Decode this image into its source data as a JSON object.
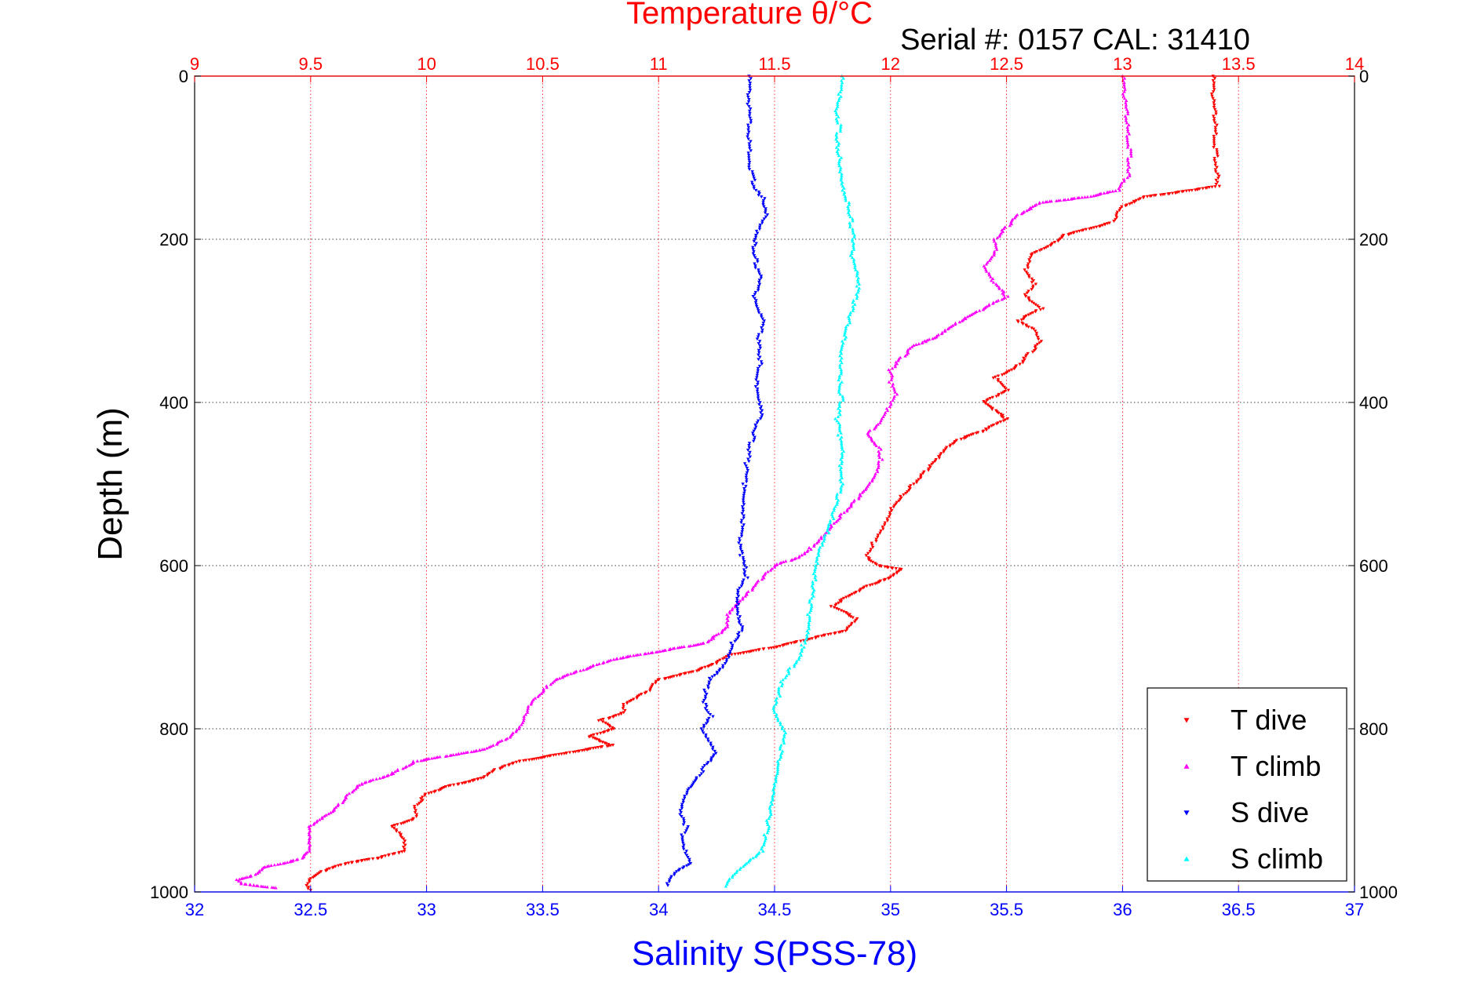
{
  "chart_data": {
    "type": "scatter",
    "title": "Temperature θ/°C",
    "subtitle": "Serial #: 0157  CAL: 31410",
    "xlabel": "Salinity S(PSS-78)",
    "ylabel": "Depth (m)",
    "x_salinity": {
      "range": [
        32,
        37
      ],
      "ticks": [
        "32",
        "32.5",
        "33",
        "33.5",
        "34",
        "34.5",
        "35",
        "35.5",
        "36",
        "36.5",
        "37"
      ],
      "color": "#0000ff"
    },
    "x_temperature": {
      "range": [
        9,
        14
      ],
      "ticks": [
        "9",
        "9.5",
        "10",
        "10.5",
        "11",
        "11.5",
        "12",
        "12.5",
        "13",
        "13.5",
        "14"
      ],
      "color": "#ff0000"
    },
    "y_depth": {
      "range": [
        0,
        1000
      ],
      "reversed": true,
      "ticks": [
        "0",
        "200",
        "400",
        "600",
        "800",
        "1000"
      ]
    },
    "grid": true,
    "legend_position": "bottom-right",
    "series": [
      {
        "name": "T dive",
        "axis": "temperature",
        "color": "#ff0000",
        "marker": "triangle-down",
        "points": [
          [
            13.39,
            0
          ],
          [
            13.39,
            30
          ],
          [
            13.4,
            60
          ],
          [
            13.4,
            90
          ],
          [
            13.41,
            120
          ],
          [
            13.41,
            135
          ],
          [
            13.3,
            140
          ],
          [
            13.1,
            148
          ],
          [
            13.0,
            160
          ],
          [
            12.95,
            180
          ],
          [
            12.75,
            195
          ],
          [
            12.7,
            205
          ],
          [
            12.6,
            220
          ],
          [
            12.58,
            240
          ],
          [
            12.62,
            255
          ],
          [
            12.58,
            270
          ],
          [
            12.65,
            285
          ],
          [
            12.55,
            300
          ],
          [
            12.62,
            310
          ],
          [
            12.65,
            325
          ],
          [
            12.6,
            340
          ],
          [
            12.55,
            355
          ],
          [
            12.45,
            370
          ],
          [
            12.5,
            385
          ],
          [
            12.4,
            400
          ],
          [
            12.45,
            410
          ],
          [
            12.5,
            420
          ],
          [
            12.4,
            435
          ],
          [
            12.3,
            445
          ],
          [
            12.25,
            455
          ],
          [
            12.2,
            470
          ],
          [
            12.15,
            485
          ],
          [
            12.1,
            500
          ],
          [
            12.05,
            515
          ],
          [
            12.0,
            530
          ],
          [
            11.98,
            545
          ],
          [
            11.95,
            560
          ],
          [
            11.92,
            575
          ],
          [
            11.9,
            590
          ],
          [
            11.95,
            600
          ],
          [
            12.05,
            605
          ],
          [
            12.0,
            615
          ],
          [
            11.9,
            625
          ],
          [
            11.8,
            640
          ],
          [
            11.75,
            650
          ],
          [
            11.85,
            665
          ],
          [
            11.8,
            680
          ],
          [
            11.65,
            690
          ],
          [
            11.5,
            700
          ],
          [
            11.3,
            710
          ],
          [
            11.25,
            720
          ],
          [
            11.15,
            730
          ],
          [
            11.0,
            740
          ],
          [
            10.95,
            755
          ],
          [
            10.85,
            770
          ],
          [
            10.85,
            780
          ],
          [
            10.75,
            790
          ],
          [
            10.8,
            800
          ],
          [
            10.7,
            810
          ],
          [
            10.8,
            820
          ],
          [
            10.6,
            830
          ],
          [
            10.4,
            840
          ],
          [
            10.3,
            850
          ],
          [
            10.25,
            860
          ],
          [
            10.1,
            870
          ],
          [
            10.0,
            880
          ],
          [
            9.95,
            895
          ],
          [
            9.95,
            910
          ],
          [
            9.85,
            920
          ],
          [
            9.9,
            935
          ],
          [
            9.9,
            950
          ],
          [
            9.8,
            958
          ],
          [
            9.65,
            965
          ],
          [
            9.55,
            975
          ],
          [
            9.5,
            985
          ],
          [
            9.49,
            992
          ],
          [
            9.5,
            998
          ]
        ]
      },
      {
        "name": "T climb",
        "axis": "temperature",
        "color": "#ff00ff",
        "marker": "triangle-up",
        "points": [
          [
            13.0,
            0
          ],
          [
            13.01,
            30
          ],
          [
            13.02,
            60
          ],
          [
            13.03,
            90
          ],
          [
            13.03,
            120
          ],
          [
            12.98,
            140
          ],
          [
            12.85,
            148
          ],
          [
            12.65,
            155
          ],
          [
            12.55,
            170
          ],
          [
            12.5,
            185
          ],
          [
            12.45,
            200
          ],
          [
            12.45,
            215
          ],
          [
            12.4,
            235
          ],
          [
            12.45,
            255
          ],
          [
            12.5,
            270
          ],
          [
            12.4,
            285
          ],
          [
            12.3,
            300
          ],
          [
            12.25,
            310
          ],
          [
            12.2,
            320
          ],
          [
            12.1,
            330
          ],
          [
            12.05,
            345
          ],
          [
            12.0,
            360
          ],
          [
            12.0,
            375
          ],
          [
            12.02,
            390
          ],
          [
            11.98,
            410
          ],
          [
            11.95,
            425
          ],
          [
            11.9,
            440
          ],
          [
            11.95,
            455
          ],
          [
            11.96,
            470
          ],
          [
            11.94,
            490
          ],
          [
            11.9,
            505
          ],
          [
            11.85,
            520
          ],
          [
            11.8,
            535
          ],
          [
            11.75,
            550
          ],
          [
            11.7,
            565
          ],
          [
            11.65,
            580
          ],
          [
            11.6,
            590
          ],
          [
            11.5,
            600
          ],
          [
            11.45,
            615
          ],
          [
            11.4,
            630
          ],
          [
            11.35,
            645
          ],
          [
            11.3,
            660
          ],
          [
            11.3,
            675
          ],
          [
            11.25,
            685
          ],
          [
            11.2,
            695
          ],
          [
            11.0,
            705
          ],
          [
            10.8,
            715
          ],
          [
            10.7,
            725
          ],
          [
            10.55,
            740
          ],
          [
            10.5,
            755
          ],
          [
            10.45,
            770
          ],
          [
            10.42,
            790
          ],
          [
            10.4,
            800
          ],
          [
            10.35,
            812
          ],
          [
            10.25,
            825
          ],
          [
            10.15,
            830
          ],
          [
            9.95,
            840
          ],
          [
            9.85,
            855
          ],
          [
            9.7,
            870
          ],
          [
            9.65,
            885
          ],
          [
            9.6,
            900
          ],
          [
            9.55,
            910
          ],
          [
            9.5,
            920
          ],
          [
            9.5,
            935
          ],
          [
            9.5,
            950
          ],
          [
            9.45,
            960
          ],
          [
            9.3,
            970
          ],
          [
            9.25,
            980
          ],
          [
            9.18,
            985
          ],
          [
            9.2,
            990
          ],
          [
            9.35,
            995
          ]
        ]
      },
      {
        "name": "S dive",
        "axis": "salinity",
        "color": "#0000ff",
        "marker": "triangle-down",
        "points": [
          [
            34.39,
            0
          ],
          [
            34.39,
            40
          ],
          [
            34.39,
            80
          ],
          [
            34.4,
            120
          ],
          [
            34.42,
            140
          ],
          [
            34.45,
            150
          ],
          [
            34.47,
            170
          ],
          [
            34.43,
            190
          ],
          [
            34.41,
            210
          ],
          [
            34.42,
            230
          ],
          [
            34.44,
            250
          ],
          [
            34.41,
            270
          ],
          [
            34.42,
            285
          ],
          [
            34.45,
            300
          ],
          [
            34.43,
            325
          ],
          [
            34.44,
            350
          ],
          [
            34.42,
            375
          ],
          [
            34.44,
            400
          ],
          [
            34.45,
            415
          ],
          [
            34.42,
            430
          ],
          [
            34.4,
            450
          ],
          [
            34.38,
            475
          ],
          [
            34.37,
            500
          ],
          [
            34.36,
            525
          ],
          [
            34.36,
            550
          ],
          [
            34.35,
            575
          ],
          [
            34.36,
            590
          ],
          [
            34.37,
            600
          ],
          [
            34.38,
            615
          ],
          [
            34.35,
            630
          ],
          [
            34.34,
            650
          ],
          [
            34.35,
            665
          ],
          [
            34.36,
            680
          ],
          [
            34.32,
            695
          ],
          [
            34.3,
            710
          ],
          [
            34.27,
            725
          ],
          [
            34.22,
            740
          ],
          [
            34.2,
            755
          ],
          [
            34.2,
            770
          ],
          [
            34.23,
            785
          ],
          [
            34.19,
            800
          ],
          [
            34.22,
            815
          ],
          [
            34.25,
            830
          ],
          [
            34.2,
            845
          ],
          [
            34.17,
            860
          ],
          [
            34.12,
            875
          ],
          [
            34.1,
            890
          ],
          [
            34.09,
            905
          ],
          [
            34.12,
            920
          ],
          [
            34.1,
            935
          ],
          [
            34.12,
            950
          ],
          [
            34.14,
            965
          ],
          [
            34.08,
            975
          ],
          [
            34.05,
            985
          ],
          [
            34.04,
            992
          ]
        ]
      },
      {
        "name": "S climb",
        "axis": "salinity",
        "color": "#00ffff",
        "marker": "triangle-up",
        "points": [
          [
            34.79,
            0
          ],
          [
            34.78,
            25
          ],
          [
            34.76,
            40
          ],
          [
            34.78,
            60
          ],
          [
            34.77,
            80
          ],
          [
            34.78,
            100
          ],
          [
            34.79,
            120
          ],
          [
            34.8,
            140
          ],
          [
            34.82,
            160
          ],
          [
            34.83,
            180
          ],
          [
            34.84,
            200
          ],
          [
            34.83,
            220
          ],
          [
            34.85,
            240
          ],
          [
            34.86,
            260
          ],
          [
            34.84,
            280
          ],
          [
            34.82,
            300
          ],
          [
            34.8,
            320
          ],
          [
            34.79,
            340
          ],
          [
            34.79,
            360
          ],
          [
            34.78,
            380
          ],
          [
            34.79,
            400
          ],
          [
            34.77,
            420
          ],
          [
            34.78,
            440
          ],
          [
            34.79,
            460
          ],
          [
            34.78,
            480
          ],
          [
            34.79,
            500
          ],
          [
            34.77,
            520
          ],
          [
            34.75,
            540
          ],
          [
            34.73,
            560
          ],
          [
            34.7,
            580
          ],
          [
            34.68,
            600
          ],
          [
            34.67,
            620
          ],
          [
            34.66,
            640
          ],
          [
            34.65,
            660
          ],
          [
            34.64,
            680
          ],
          [
            34.62,
            700
          ],
          [
            34.6,
            715
          ],
          [
            34.56,
            730
          ],
          [
            34.53,
            745
          ],
          [
            34.52,
            760
          ],
          [
            34.5,
            775
          ],
          [
            34.52,
            790
          ],
          [
            34.55,
            805
          ],
          [
            34.53,
            820
          ],
          [
            34.52,
            840
          ],
          [
            34.5,
            860
          ],
          [
            34.49,
            880
          ],
          [
            34.48,
            900
          ],
          [
            34.47,
            920
          ],
          [
            34.46,
            935
          ],
          [
            34.45,
            950
          ],
          [
            34.38,
            965
          ],
          [
            34.33,
            978
          ],
          [
            34.3,
            988
          ],
          [
            34.29,
            993
          ]
        ]
      }
    ]
  }
}
